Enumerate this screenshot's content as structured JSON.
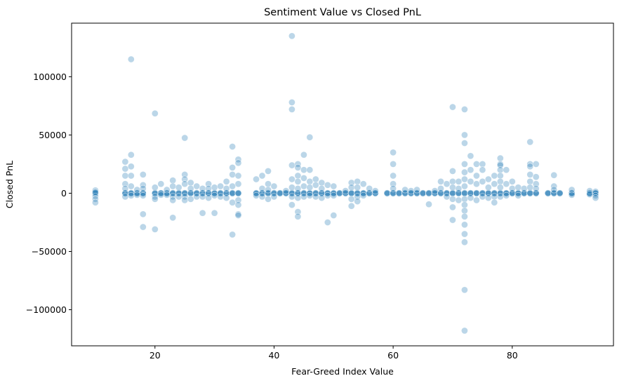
{
  "chart_data": {
    "type": "scatter",
    "title": "Sentiment Value vs Closed PnL",
    "xlabel": "Fear-Greed Index Value",
    "ylabel": "Closed PnL",
    "xlim": [
      6,
      97
    ],
    "ylim": [
      -131000,
      146000
    ],
    "xticks": [
      20,
      40,
      60,
      80
    ],
    "yticks": [
      -100000,
      -50000,
      0,
      50000,
      100000
    ],
    "xtick_labels": [
      "20",
      "40",
      "60",
      "80"
    ],
    "ytick_labels": [
      "−100000",
      "−50000",
      "0",
      "50000",
      "100000"
    ],
    "grid": false,
    "legend": "none",
    "marker_color": "#1f77b4",
    "marker_alpha": 0.3,
    "zero_band_x": [
      10,
      15,
      16,
      17,
      18,
      20,
      21,
      22,
      23,
      24,
      25,
      26,
      27,
      28,
      29,
      30,
      31,
      32,
      33,
      34,
      37,
      38,
      39,
      40,
      41,
      42,
      43,
      44,
      45,
      46,
      47,
      48,
      49,
      50,
      51,
      52,
      53,
      54,
      55,
      56,
      57,
      59,
      60,
      61,
      62,
      63,
      64,
      65,
      66,
      67,
      68,
      69,
      70,
      71,
      72,
      73,
      74,
      75,
      76,
      77,
      78,
      79,
      80,
      81,
      82,
      83,
      84,
      86,
      87,
      88,
      90,
      93,
      94
    ],
    "points": [
      [
        10,
        2500
      ],
      [
        10,
        -2500
      ],
      [
        10,
        -5000
      ],
      [
        10,
        -8000
      ],
      [
        10,
        1000
      ],
      [
        15,
        27000
      ],
      [
        15,
        21000
      ],
      [
        15,
        15000
      ],
      [
        15,
        8000
      ],
      [
        15,
        4000
      ],
      [
        15,
        -3000
      ],
      [
        16,
        115000
      ],
      [
        16,
        33000
      ],
      [
        16,
        23000
      ],
      [
        16,
        15000
      ],
      [
        16,
        6000
      ],
      [
        16,
        -2000
      ],
      [
        17,
        3000
      ],
      [
        17,
        -1500
      ],
      [
        18,
        16000
      ],
      [
        18,
        7000
      ],
      [
        18,
        4000
      ],
      [
        18,
        -2000
      ],
      [
        18,
        -18000
      ],
      [
        18,
        -29000
      ],
      [
        20,
        68500
      ],
      [
        20,
        5000
      ],
      [
        20,
        -3000
      ],
      [
        20,
        -5000
      ],
      [
        20,
        -31000
      ],
      [
        21,
        8000
      ],
      [
        21,
        -1500
      ],
      [
        22,
        3000
      ],
      [
        22,
        -1500
      ],
      [
        23,
        11000
      ],
      [
        23,
        6000
      ],
      [
        23,
        -3000
      ],
      [
        23,
        -6000
      ],
      [
        23,
        -21000
      ],
      [
        24,
        5000
      ],
      [
        24,
        -3000
      ],
      [
        25,
        47500
      ],
      [
        25,
        16000
      ],
      [
        25,
        12000
      ],
      [
        25,
        8000
      ],
      [
        25,
        -3000
      ],
      [
        25,
        -6000
      ],
      [
        26,
        9000
      ],
      [
        26,
        4000
      ],
      [
        26,
        -5000
      ],
      [
        27,
        6000
      ],
      [
        27,
        -3000
      ],
      [
        28,
        4000
      ],
      [
        28,
        -17000
      ],
      [
        28,
        -3000
      ],
      [
        29,
        8000
      ],
      [
        29,
        4000
      ],
      [
        29,
        -4000
      ],
      [
        30,
        5000
      ],
      [
        30,
        -2000
      ],
      [
        30,
        -17000
      ],
      [
        31,
        6000
      ],
      [
        31,
        -3000
      ],
      [
        32,
        10000
      ],
      [
        32,
        4000
      ],
      [
        32,
        -4000
      ],
      [
        33,
        40000
      ],
      [
        33,
        22000
      ],
      [
        33,
        16000
      ],
      [
        33,
        6000
      ],
      [
        33,
        -8000
      ],
      [
        33,
        -35500
      ],
      [
        34,
        29000
      ],
      [
        34,
        26000
      ],
      [
        34,
        15000
      ],
      [
        34,
        8000
      ],
      [
        34,
        -6000
      ],
      [
        34,
        -10000
      ],
      [
        34,
        -18000
      ],
      [
        34,
        -19000
      ],
      [
        37,
        12000
      ],
      [
        37,
        -2000
      ],
      [
        38,
        15000
      ],
      [
        38,
        4000
      ],
      [
        38,
        -3000
      ],
      [
        39,
        19000
      ],
      [
        39,
        8000
      ],
      [
        39,
        3000
      ],
      [
        39,
        -5000
      ],
      [
        40,
        6000
      ],
      [
        40,
        -3000
      ],
      [
        42,
        2000
      ],
      [
        43,
        135000
      ],
      [
        43,
        78000
      ],
      [
        43,
        72000
      ],
      [
        43,
        24000
      ],
      [
        43,
        12000
      ],
      [
        43,
        5000
      ],
      [
        43,
        -3000
      ],
      [
        43,
        -10000
      ],
      [
        44,
        25000
      ],
      [
        44,
        22000
      ],
      [
        44,
        15000
      ],
      [
        44,
        10000
      ],
      [
        44,
        4000
      ],
      [
        44,
        -4000
      ],
      [
        44,
        -16000
      ],
      [
        44,
        -20000
      ],
      [
        45,
        33000
      ],
      [
        45,
        20000
      ],
      [
        45,
        13000
      ],
      [
        45,
        6000
      ],
      [
        45,
        -3000
      ],
      [
        46,
        48000
      ],
      [
        46,
        20000
      ],
      [
        46,
        10000
      ],
      [
        46,
        5000
      ],
      [
        46,
        -2000
      ],
      [
        47,
        12000
      ],
      [
        47,
        7000
      ],
      [
        47,
        -3000
      ],
      [
        48,
        9000
      ],
      [
        48,
        4000
      ],
      [
        48,
        -4000
      ],
      [
        49,
        7000
      ],
      [
        49,
        -2000
      ],
      [
        49,
        -25000
      ],
      [
        50,
        6000
      ],
      [
        50,
        -2000
      ],
      [
        50,
        -19000
      ],
      [
        52,
        2000
      ],
      [
        53,
        9000
      ],
      [
        53,
        5000
      ],
      [
        53,
        -5000
      ],
      [
        53,
        -11000
      ],
      [
        54,
        10000
      ],
      [
        54,
        5000
      ],
      [
        54,
        -3000
      ],
      [
        54,
        -7000
      ],
      [
        55,
        8000
      ],
      [
        55,
        -2000
      ],
      [
        56,
        4000
      ],
      [
        57,
        2000
      ],
      [
        60,
        35000
      ],
      [
        60,
        25000
      ],
      [
        60,
        15000
      ],
      [
        60,
        8000
      ],
      [
        60,
        4000
      ],
      [
        62,
        3000
      ],
      [
        63,
        2000
      ],
      [
        64,
        3000
      ],
      [
        66,
        -9500
      ],
      [
        67,
        2000
      ],
      [
        68,
        10000
      ],
      [
        68,
        4000
      ],
      [
        69,
        8000
      ],
      [
        69,
        -3000
      ],
      [
        70,
        74000
      ],
      [
        70,
        19000
      ],
      [
        70,
        10000
      ],
      [
        70,
        5000
      ],
      [
        70,
        -5000
      ],
      [
        70,
        -12000
      ],
      [
        70,
        -23000
      ],
      [
        71,
        10000
      ],
      [
        71,
        4000
      ],
      [
        71,
        -6000
      ],
      [
        72,
        72000
      ],
      [
        72,
        50000
      ],
      [
        72,
        43000
      ],
      [
        72,
        25000
      ],
      [
        72,
        18000
      ],
      [
        72,
        12000
      ],
      [
        72,
        6000
      ],
      [
        72,
        -5000
      ],
      [
        72,
        -10000
      ],
      [
        72,
        -15000
      ],
      [
        72,
        -20000
      ],
      [
        72,
        -27000
      ],
      [
        72,
        -35000
      ],
      [
        72,
        -42000
      ],
      [
        72,
        -83000
      ],
      [
        72,
        -118000
      ],
      [
        73,
        32000
      ],
      [
        73,
        20000
      ],
      [
        73,
        10000
      ],
      [
        73,
        -4000
      ],
      [
        74,
        25000
      ],
      [
        74,
        15000
      ],
      [
        74,
        8000
      ],
      [
        74,
        -6000
      ],
      [
        75,
        25000
      ],
      [
        75,
        20000
      ],
      [
        75,
        10000
      ],
      [
        75,
        -3000
      ],
      [
        76,
        12000
      ],
      [
        76,
        5000
      ],
      [
        76,
        -4000
      ],
      [
        77,
        15000
      ],
      [
        77,
        8000
      ],
      [
        77,
        -3000
      ],
      [
        77,
        -8000
      ],
      [
        78,
        30000
      ],
      [
        78,
        25000
      ],
      [
        78,
        24000
      ],
      [
        78,
        20000
      ],
      [
        78,
        15000
      ],
      [
        78,
        10000
      ],
      [
        78,
        5000
      ],
      [
        78,
        -3000
      ],
      [
        79,
        20000
      ],
      [
        79,
        8000
      ],
      [
        79,
        -2000
      ],
      [
        80,
        10000
      ],
      [
        80,
        4000
      ],
      [
        81,
        5000
      ],
      [
        81,
        -2000
      ],
      [
        82,
        4000
      ],
      [
        83,
        44000
      ],
      [
        83,
        25000
      ],
      [
        83,
        23000
      ],
      [
        83,
        16000
      ],
      [
        83,
        10000
      ],
      [
        83,
        5000
      ],
      [
        84,
        25000
      ],
      [
        84,
        14000
      ],
      [
        84,
        8000
      ],
      [
        84,
        4000
      ],
      [
        87,
        15500
      ],
      [
        87,
        6000
      ],
      [
        87,
        3000
      ],
      [
        90,
        3000
      ],
      [
        90,
        -1500
      ],
      [
        93,
        2000
      ],
      [
        93,
        -1000
      ],
      [
        94,
        1500
      ],
      [
        94,
        -2000
      ],
      [
        94,
        -4000
      ]
    ]
  }
}
